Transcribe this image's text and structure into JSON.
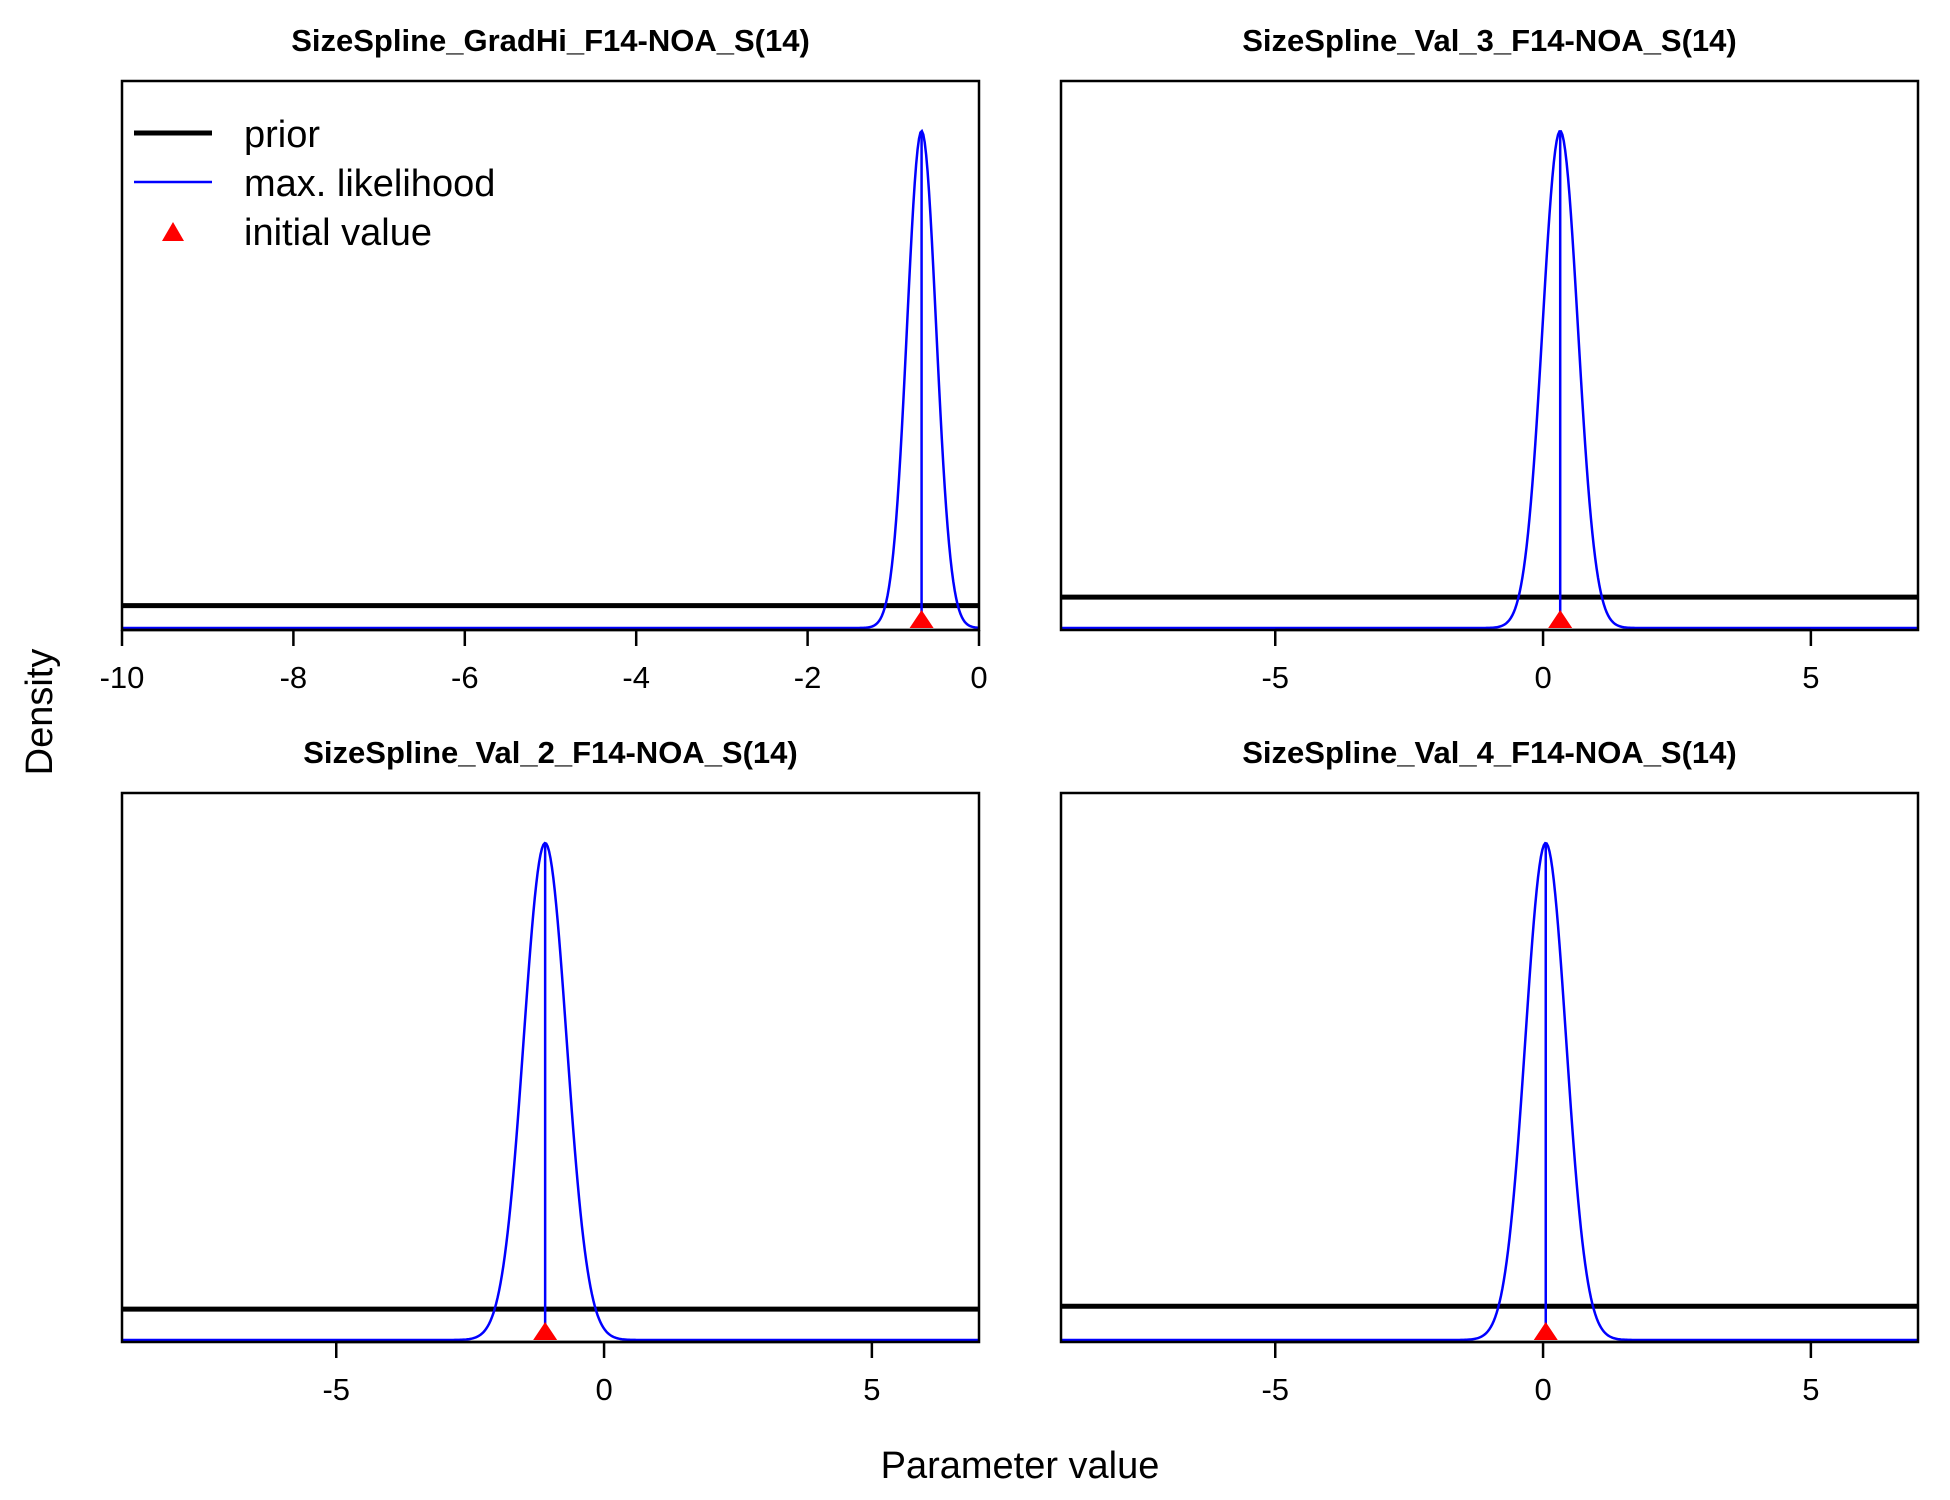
{
  "figure": {
    "ylabel": "Density",
    "xlabel": "Parameter value",
    "colors": {
      "prior": "#000000",
      "mle": "#0000ff",
      "initial": "#ff0000"
    }
  },
  "legend": {
    "placement": "top-left of first panel",
    "items": [
      {
        "label": "prior",
        "style": "thick-black-line"
      },
      {
        "label": "max. likelihood",
        "style": "thin-blue-line"
      },
      {
        "label": "initial value",
        "style": "red-triangle"
      }
    ]
  },
  "chart_data": [
    {
      "type": "line",
      "title": "SizeSpline_GradHi_F14-NOA_S(14)",
      "xlim": [
        -10,
        0
      ],
      "xticks": [
        -10,
        -8,
        -6,
        -4,
        -2,
        0
      ],
      "prior_level": 0.045,
      "mle": {
        "mean": -0.67,
        "sd": 0.17,
        "peak": 1.0
      },
      "initial_value": -0.67,
      "show_legend": true
    },
    {
      "type": "line",
      "title": "SizeSpline_Val_3_F14-NOA_S(14)",
      "xlim": [
        -9,
        7
      ],
      "xticks": [
        -5,
        0,
        5
      ],
      "prior_level": 0.062,
      "mle": {
        "mean": 0.32,
        "sd": 0.33,
        "peak": 1.0
      },
      "initial_value": 0.32,
      "show_legend": false
    },
    {
      "type": "line",
      "title": "SizeSpline_Val_2_F14-NOA_S(14)",
      "xlim": [
        -9,
        7
      ],
      "xticks": [
        -5,
        0,
        5
      ],
      "prior_level": 0.062,
      "mle": {
        "mean": -1.1,
        "sd": 0.4,
        "peak": 1.0
      },
      "initial_value": -1.1,
      "show_legend": false
    },
    {
      "type": "line",
      "title": "SizeSpline_Val_4_F14-NOA_S(14)",
      "xlim": [
        -9,
        7
      ],
      "xticks": [
        -5,
        0,
        5
      ],
      "prior_level": 0.068,
      "mle": {
        "mean": 0.05,
        "sd": 0.38,
        "peak": 1.0
      },
      "initial_value": 0.05,
      "show_legend": false
    }
  ]
}
